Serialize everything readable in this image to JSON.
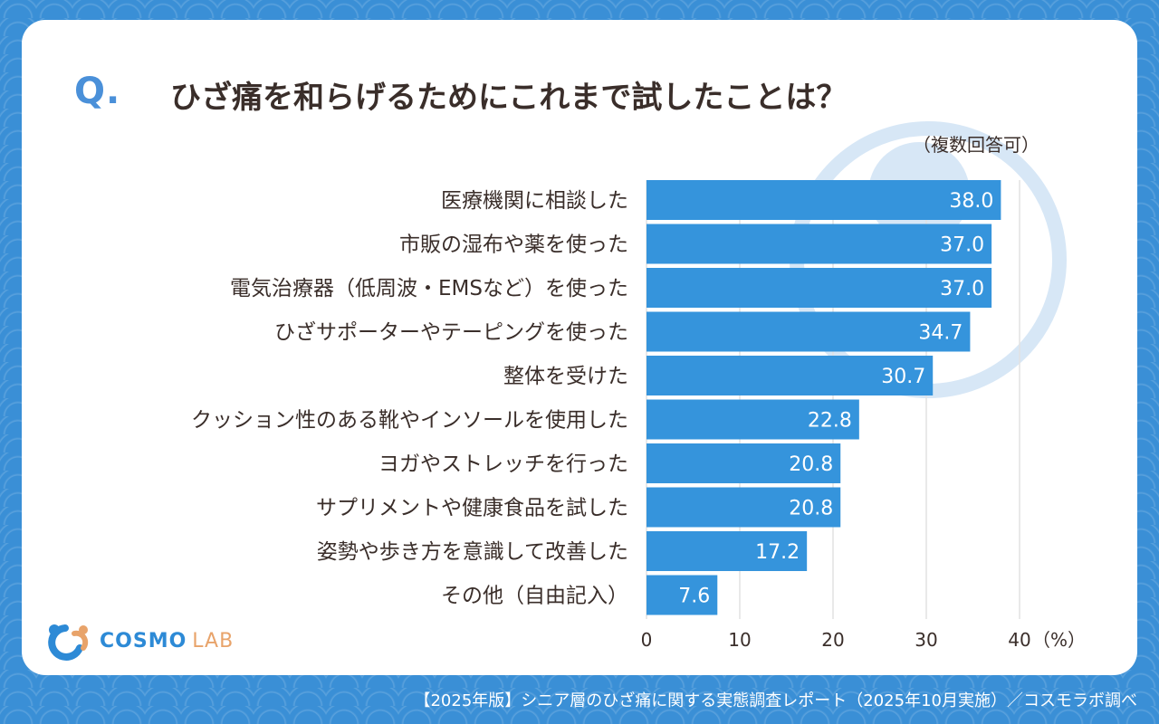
{
  "question_mark": "Q.",
  "title": "ひざ痛を和らげるためにこれまで試したことは？",
  "note": "（複数回答可）",
  "logo": {
    "main": "COSMO",
    "sub": "LAB"
  },
  "footer": "【2025年版】シニア層のひざ痛に関する実態調査レポート（2025年10月実施）／コスモラボ調べ",
  "colors": {
    "bar": "#3594dc",
    "background": "#3a8fd6",
    "text": "#3a2e2a",
    "accent": "#4a90d9"
  },
  "chart_data": {
    "type": "bar",
    "orientation": "horizontal",
    "title": "ひざ痛を和らげるためにこれまで試したことは？",
    "xlabel": "（%）",
    "ylabel": "",
    "xlim": [
      0,
      40
    ],
    "ticks": [
      0,
      10,
      20,
      30,
      40
    ],
    "unit_label": "（%）",
    "grid": true,
    "categories": [
      "医療機関に相談した",
      "市販の湿布や薬を使った",
      "電気治療器（低周波・EMSなど）を使った",
      "ひざサポーターやテーピングを使った",
      "整体を受けた",
      "クッション性のある靴やインソールを使用した",
      "ヨガやストレッチを行った",
      "サプリメントや健康食品を試した",
      "姿勢や歩き方を意識して改善した",
      "その他（自由記入）"
    ],
    "values": [
      38.0,
      37.0,
      37.0,
      34.7,
      30.7,
      22.8,
      20.8,
      20.8,
      17.2,
      7.6
    ],
    "value_labels": [
      "38.0",
      "37.0",
      "37.0",
      "34.7",
      "30.7",
      "22.8",
      "20.8",
      "20.8",
      "17.2",
      "7.6"
    ]
  }
}
